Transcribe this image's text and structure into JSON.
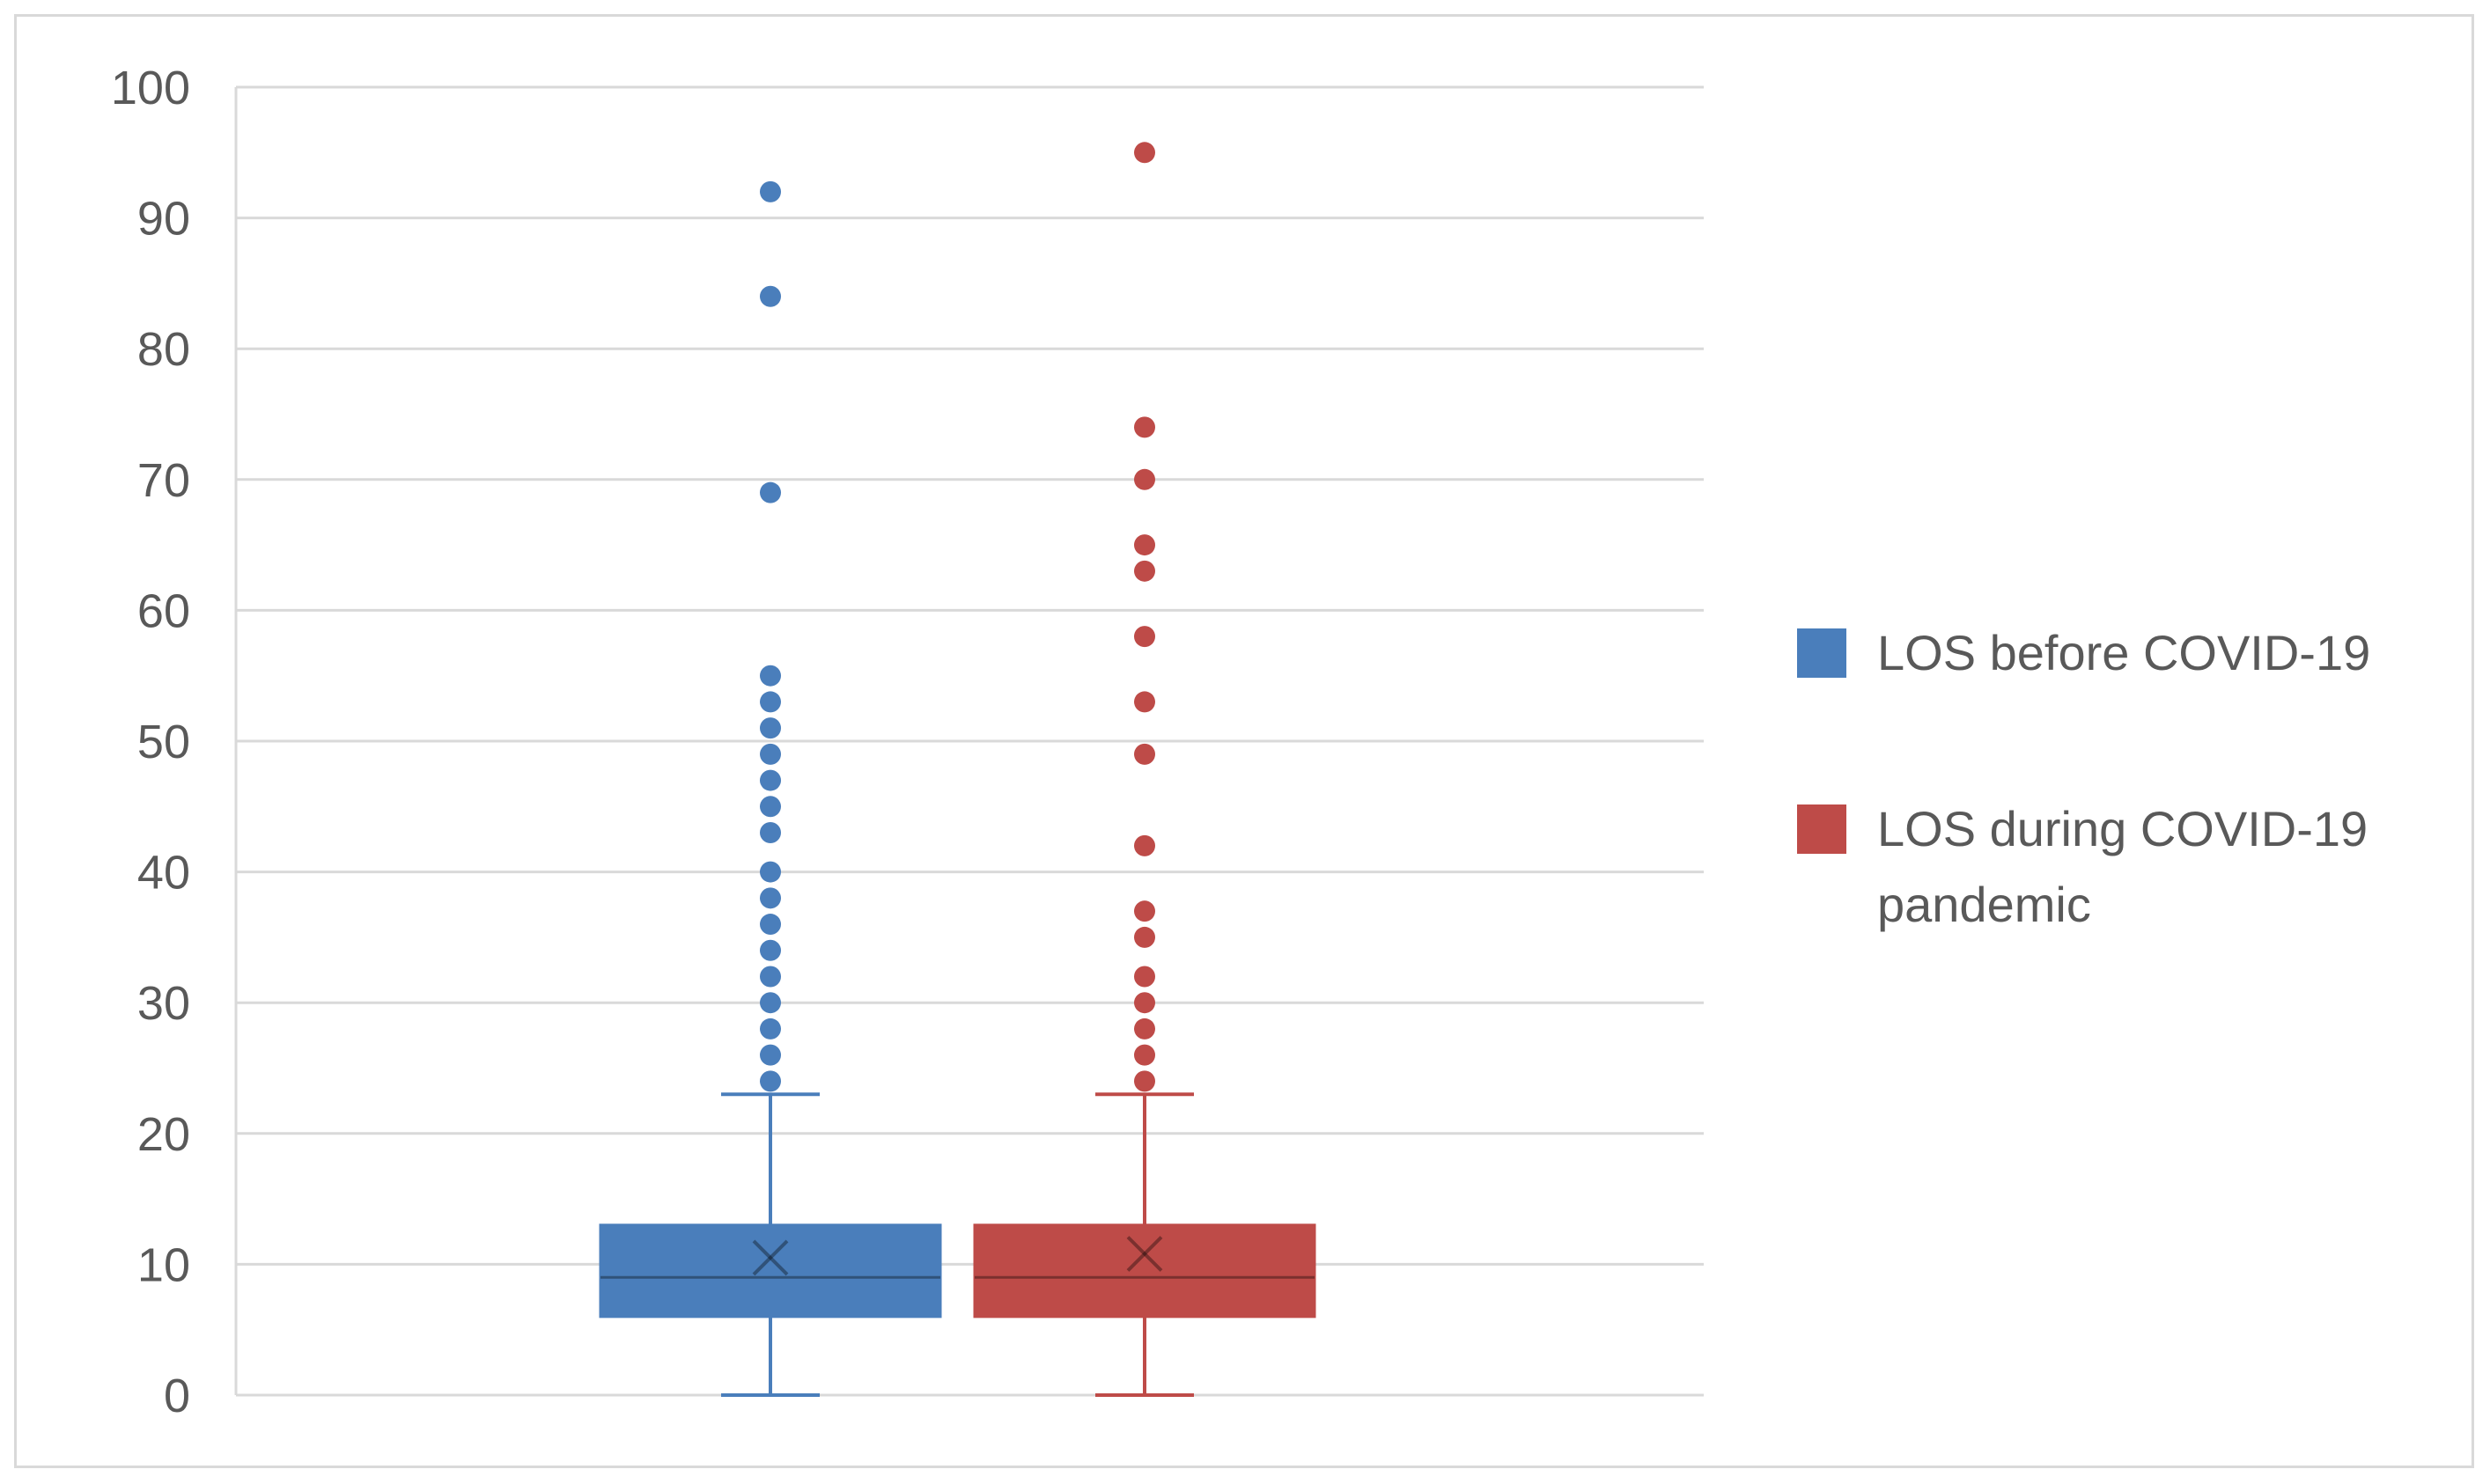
{
  "chart_data": {
    "type": "box",
    "title": "",
    "xlabel": "",
    "ylabel": "",
    "ylim": [
      0,
      100
    ],
    "yticks": [
      0,
      10,
      20,
      30,
      40,
      50,
      60,
      70,
      80,
      90,
      100
    ],
    "grid": true,
    "legend_position": "right",
    "series": [
      {
        "name": "LOS before COVID-19",
        "color": "#4a7ebb",
        "min": 0,
        "q1": 6,
        "median": 9,
        "q3": 13,
        "whisker_high": 23,
        "mean": 10.5,
        "outliers": [
          24,
          26,
          28,
          30,
          32,
          34,
          36,
          38,
          40,
          43,
          45,
          47,
          49,
          51,
          53,
          55,
          69,
          84,
          92
        ]
      },
      {
        "name": "LOS during COVID-19 pandemic",
        "color": "#be4b48",
        "min": 0,
        "q1": 6,
        "median": 9,
        "q3": 13,
        "whisker_high": 23,
        "mean": 10.8,
        "outliers": [
          24,
          26,
          28,
          30,
          32,
          35,
          37,
          42,
          49,
          53,
          58,
          63,
          65,
          70,
          74,
          95
        ]
      }
    ],
    "legend": {
      "items": [
        {
          "lines": [
            "LOS before COVID-19"
          ]
        },
        {
          "lines": [
            "LOS during COVID-19",
            "pandemic"
          ]
        }
      ]
    }
  }
}
